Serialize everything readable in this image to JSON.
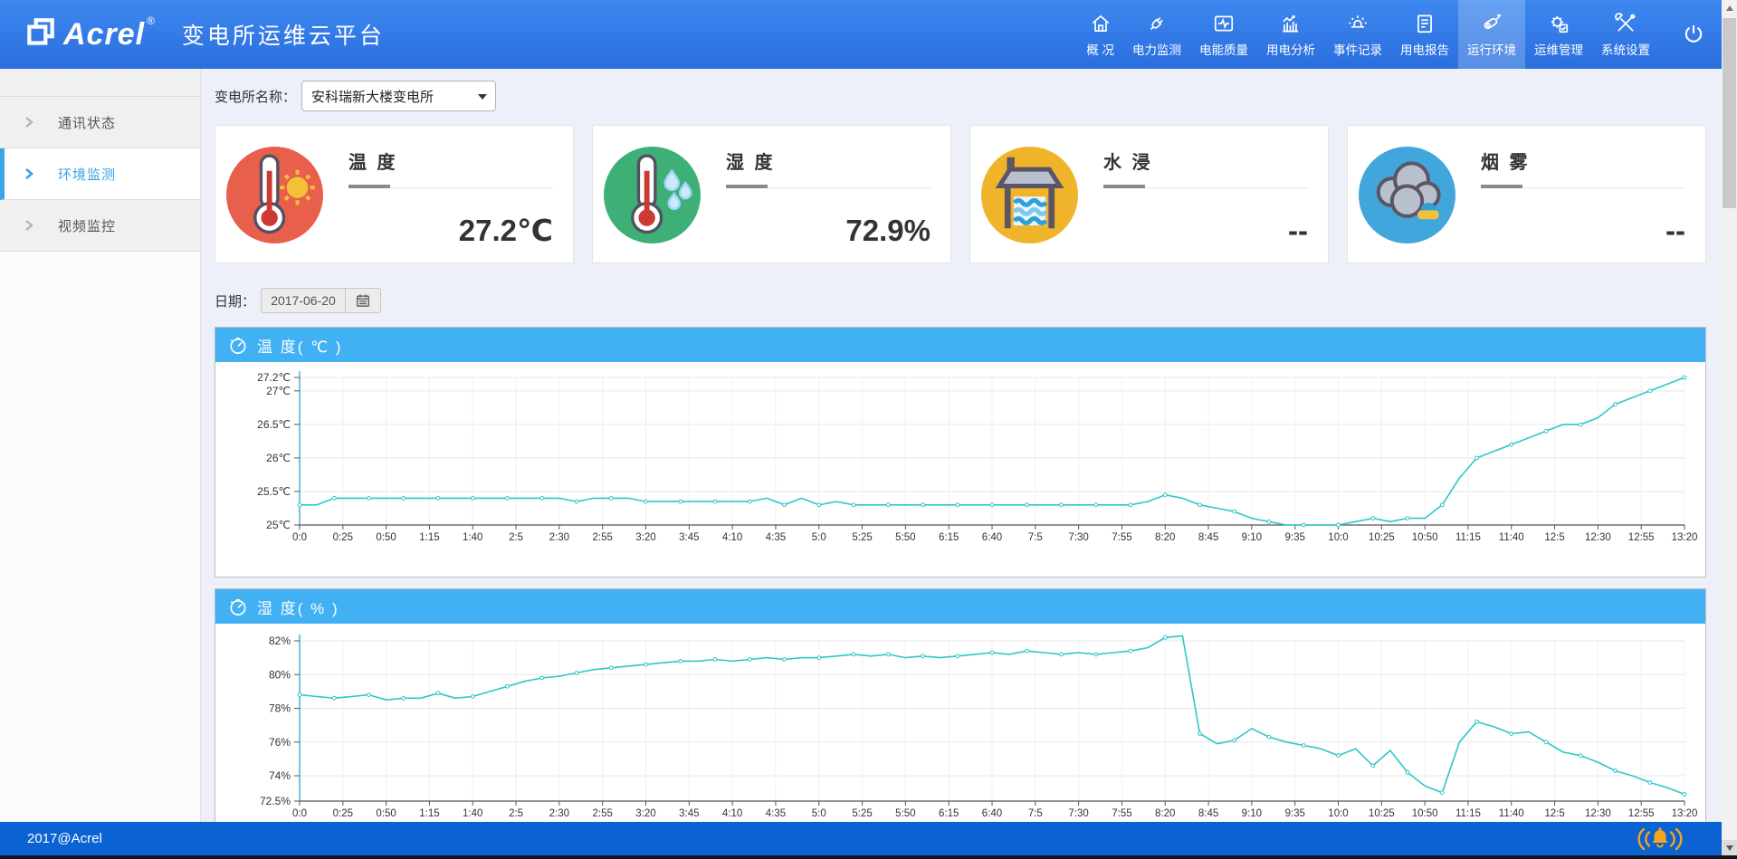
{
  "header": {
    "brand": "Acrel",
    "brand_reg": "®",
    "app_title": "变电所运维云平台",
    "nav_items": [
      {
        "label": "概 况",
        "icon": "home-icon",
        "active": false
      },
      {
        "label": "电力监测",
        "icon": "power-monitor-icon",
        "active": false
      },
      {
        "label": "电能质量",
        "icon": "power-quality-icon",
        "active": false
      },
      {
        "label": "用电分析",
        "icon": "usage-analysis-icon",
        "active": false
      },
      {
        "label": "事件记录",
        "icon": "event-log-icon",
        "active": false
      },
      {
        "label": "用电报告",
        "icon": "usage-report-icon",
        "active": false
      },
      {
        "label": "运行环境",
        "icon": "environment-icon",
        "active": true
      },
      {
        "label": "运维管理",
        "icon": "maintenance-icon",
        "active": false
      },
      {
        "label": "系统设置",
        "icon": "system-settings-icon",
        "active": false
      }
    ],
    "power_icon": "power-icon"
  },
  "sidebar": {
    "items": [
      {
        "label": "通讯状态",
        "active": false
      },
      {
        "label": "环境监测",
        "active": true
      },
      {
        "label": "视频监控",
        "active": false
      }
    ]
  },
  "filters": {
    "station_label": "变电所名称：",
    "station_value": "安科瑞新大楼变电所",
    "date_label": "日期：",
    "date_value": "2017-06-20",
    "calendar_icon": "calendar-icon"
  },
  "cards": [
    {
      "title": "温 度",
      "value": "27.2℃",
      "icon": "thermometer-sun-icon",
      "circle_color": "#e85f4c"
    },
    {
      "title": "湿 度",
      "value": "72.9%",
      "icon": "thermometer-drop-icon",
      "circle_color": "#3eb077"
    },
    {
      "title": "水 浸",
      "value": "--",
      "icon": "water-tank-icon",
      "circle_color": "#f0b42a"
    },
    {
      "title": "烟 雾",
      "value": "--",
      "icon": "smoke-cloud-icon",
      "circle_color": "#41a6dc"
    }
  ],
  "footer": {
    "copyright": "2017@Acrel",
    "alarm_icon": "alarm-bell-icon"
  },
  "chart_data": [
    {
      "type": "line",
      "title": "温 度( ℃ )",
      "header_icon": "timer-icon",
      "line_color": "#2ec7c9",
      "axis_color": "#3fa7dc",
      "ylim": [
        25,
        27.2
      ],
      "y_ticks": [
        {
          "v": 25,
          "label": "25℃"
        },
        {
          "v": 25.5,
          "label": "25.5℃"
        },
        {
          "v": 26,
          "label": "26℃"
        },
        {
          "v": 26.5,
          "label": "26.5℃"
        },
        {
          "v": 27,
          "label": "27℃"
        },
        {
          "v": 27.2,
          "label": "27.2℃"
        }
      ],
      "x_tick_labels": [
        "0:0",
        "0:25",
        "0:50",
        "1:15",
        "1:40",
        "2:5",
        "2:30",
        "2:55",
        "3:20",
        "3:45",
        "4:10",
        "4:35",
        "5:0",
        "5:25",
        "5:50",
        "6:15",
        "6:40",
        "7:5",
        "7:30",
        "7:55",
        "8:20",
        "8:45",
        "9:10",
        "9:35",
        "10:0",
        "10:25",
        "10:50",
        "11:15",
        "11:40",
        "12:5",
        "12:30",
        "12:55",
        "13:20"
      ],
      "sample_interval_min": 10,
      "x_total_min": 800,
      "values": [
        25.3,
        25.3,
        25.4,
        25.4,
        25.4,
        25.4,
        25.4,
        25.4,
        25.4,
        25.4,
        25.4,
        25.4,
        25.4,
        25.4,
        25.4,
        25.4,
        25.35,
        25.4,
        25.4,
        25.4,
        25.35,
        25.35,
        25.35,
        25.35,
        25.35,
        25.35,
        25.35,
        25.4,
        25.3,
        25.4,
        25.3,
        25.35,
        25.3,
        25.3,
        25.3,
        25.3,
        25.3,
        25.3,
        25.3,
        25.3,
        25.3,
        25.3,
        25.3,
        25.3,
        25.3,
        25.3,
        25.3,
        25.3,
        25.3,
        25.35,
        25.45,
        25.4,
        25.3,
        25.25,
        25.2,
        25.1,
        25.05,
        25.0,
        25.0,
        25.0,
        25.0,
        25.05,
        25.1,
        25.05,
        25.1,
        25.1,
        25.3,
        25.7,
        26.0,
        26.1,
        26.2,
        26.3,
        26.4,
        26.5,
        26.5,
        26.6,
        26.8,
        26.9,
        27.0,
        27.1,
        27.2
      ]
    },
    {
      "type": "line",
      "title": "湿 度( % )",
      "header_icon": "timer-icon",
      "line_color": "#2ec7c9",
      "axis_color": "#3fa7dc",
      "ylim": [
        72.5,
        82
      ],
      "y_ticks": [
        {
          "v": 72.5,
          "label": "72.5%"
        },
        {
          "v": 74,
          "label": "74%"
        },
        {
          "v": 76,
          "label": "76%"
        },
        {
          "v": 78,
          "label": "78%"
        },
        {
          "v": 80,
          "label": "80%"
        },
        {
          "v": 82,
          "label": "82%"
        }
      ],
      "x_tick_labels": [
        "0:0",
        "0:25",
        "0:50",
        "1:15",
        "1:40",
        "2:5",
        "2:30",
        "2:55",
        "3:20",
        "3:45",
        "4:10",
        "4:35",
        "5:0",
        "5:25",
        "5:50",
        "6:15",
        "6:40",
        "7:5",
        "7:30",
        "7:55",
        "8:20",
        "8:45",
        "9:10",
        "9:35",
        "10:0",
        "10:25",
        "10:50",
        "11:15",
        "11:40",
        "12:5",
        "12:30",
        "12:55",
        "13:20"
      ],
      "sample_interval_min": 10,
      "x_total_min": 800,
      "values": [
        78.8,
        78.7,
        78.6,
        78.7,
        78.8,
        78.5,
        78.6,
        78.6,
        78.9,
        78.6,
        78.7,
        79.0,
        79.3,
        79.6,
        79.8,
        79.9,
        80.1,
        80.3,
        80.4,
        80.5,
        80.6,
        80.7,
        80.8,
        80.8,
        80.9,
        80.8,
        80.9,
        81.0,
        80.9,
        81.0,
        81.0,
        81.1,
        81.2,
        81.1,
        81.2,
        81.0,
        81.1,
        81.0,
        81.1,
        81.2,
        81.3,
        81.2,
        81.4,
        81.3,
        81.2,
        81.3,
        81.2,
        81.3,
        81.4,
        81.6,
        82.2,
        82.3,
        76.5,
        75.9,
        76.1,
        76.8,
        76.3,
        76.0,
        75.8,
        75.6,
        75.2,
        75.6,
        74.6,
        75.5,
        74.2,
        73.4,
        73.0,
        76.0,
        77.2,
        76.9,
        76.5,
        76.6,
        76.0,
        75.4,
        75.2,
        74.8,
        74.3,
        74.0,
        73.6,
        73.3,
        72.9
      ]
    }
  ]
}
